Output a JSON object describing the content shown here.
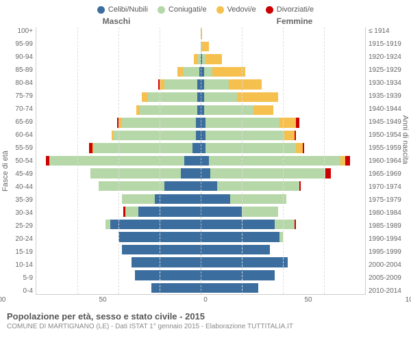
{
  "legend": [
    {
      "label": "Celibi/Nubili",
      "color": "#3b6e9e"
    },
    {
      "label": "Coniugati/e",
      "color": "#b6d7a8"
    },
    {
      "label": "Vedovi/e",
      "color": "#f6c04e"
    },
    {
      "label": "Divorziati/e",
      "color": "#cc0000"
    }
  ],
  "top_left_label": "Maschi",
  "top_right_label": "Femmine",
  "y_left_title": "Fasce di età",
  "y_right_title": "Anni di nascita",
  "x_ticks": [
    "100",
    "50",
    "0",
    "50",
    "100"
  ],
  "x_max": 100,
  "footer_title": "Popolazione per età, sesso e stato civile - 2015",
  "footer_sub": "COMUNE DI MARTIGNANO (LE) - Dati ISTAT 1° gennaio 2015 - Elaborazione TUTTITALIA.IT",
  "rows": [
    {
      "age": "100+",
      "birth": "≤ 1914",
      "m": {
        "c": 0,
        "s": 0,
        "v": 0,
        "d": 0
      },
      "f": {
        "c": 0,
        "s": 0,
        "v": 1,
        "d": 0
      }
    },
    {
      "age": "95-99",
      "birth": "1915-1919",
      "m": {
        "c": 0,
        "s": 0,
        "v": 0,
        "d": 0
      },
      "f": {
        "c": 0,
        "s": 1,
        "v": 4,
        "d": 0
      }
    },
    {
      "age": "90-94",
      "birth": "1920-1924",
      "m": {
        "c": 0,
        "s": 2,
        "v": 2,
        "d": 0
      },
      "f": {
        "c": 1,
        "s": 2,
        "v": 10,
        "d": 0
      }
    },
    {
      "age": "85-89",
      "birth": "1925-1929",
      "m": {
        "c": 1,
        "s": 10,
        "v": 3,
        "d": 0
      },
      "f": {
        "c": 2,
        "s": 5,
        "v": 20,
        "d": 0
      }
    },
    {
      "age": "80-84",
      "birth": "1930-1934",
      "m": {
        "c": 2,
        "s": 20,
        "v": 3,
        "d": 1
      },
      "f": {
        "c": 2,
        "s": 15,
        "v": 20,
        "d": 0
      }
    },
    {
      "age": "75-79",
      "birth": "1935-1939",
      "m": {
        "c": 2,
        "s": 30,
        "v": 4,
        "d": 0
      },
      "f": {
        "c": 2,
        "s": 20,
        "v": 25,
        "d": 0
      }
    },
    {
      "age": "70-74",
      "birth": "1940-1944",
      "m": {
        "c": 2,
        "s": 35,
        "v": 2,
        "d": 0
      },
      "f": {
        "c": 2,
        "s": 30,
        "v": 12,
        "d": 0
      }
    },
    {
      "age": "65-69",
      "birth": "1945-1949",
      "m": {
        "c": 3,
        "s": 45,
        "v": 2,
        "d": 1
      },
      "f": {
        "c": 3,
        "s": 45,
        "v": 10,
        "d": 2
      }
    },
    {
      "age": "60-64",
      "birth": "1950-1954",
      "m": {
        "c": 3,
        "s": 50,
        "v": 1,
        "d": 0
      },
      "f": {
        "c": 3,
        "s": 48,
        "v": 6,
        "d": 1
      }
    },
    {
      "age": "55-59",
      "birth": "1955-1959",
      "m": {
        "c": 5,
        "s": 60,
        "v": 1,
        "d": 2
      },
      "f": {
        "c": 3,
        "s": 55,
        "v": 4,
        "d": 1
      }
    },
    {
      "age": "50-54",
      "birth": "1960-1964",
      "m": {
        "c": 10,
        "s": 82,
        "v": 0,
        "d": 2
      },
      "f": {
        "c": 5,
        "s": 80,
        "v": 3,
        "d": 3
      }
    },
    {
      "age": "45-49",
      "birth": "1965-1969",
      "m": {
        "c": 12,
        "s": 55,
        "v": 0,
        "d": 0
      },
      "f": {
        "c": 6,
        "s": 70,
        "v": 0,
        "d": 3
      }
    },
    {
      "age": "40-44",
      "birth": "1970-1974",
      "m": {
        "c": 22,
        "s": 40,
        "v": 0,
        "d": 0
      },
      "f": {
        "c": 10,
        "s": 50,
        "v": 0,
        "d": 1
      }
    },
    {
      "age": "35-39",
      "birth": "1975-1979",
      "m": {
        "c": 28,
        "s": 20,
        "v": 0,
        "d": 0
      },
      "f": {
        "c": 18,
        "s": 34,
        "v": 0,
        "d": 0
      }
    },
    {
      "age": "30-34",
      "birth": "1980-1984",
      "m": {
        "c": 38,
        "s": 8,
        "v": 0,
        "d": 1
      },
      "f": {
        "c": 25,
        "s": 22,
        "v": 0,
        "d": 0
      }
    },
    {
      "age": "25-29",
      "birth": "1985-1989",
      "m": {
        "c": 55,
        "s": 3,
        "v": 0,
        "d": 0
      },
      "f": {
        "c": 45,
        "s": 12,
        "v": 0,
        "d": 1
      }
    },
    {
      "age": "20-24",
      "birth": "1990-1994",
      "m": {
        "c": 50,
        "s": 0,
        "v": 0,
        "d": 0
      },
      "f": {
        "c": 48,
        "s": 2,
        "v": 0,
        "d": 0
      }
    },
    {
      "age": "15-19",
      "birth": "1995-1999",
      "m": {
        "c": 48,
        "s": 0,
        "v": 0,
        "d": 0
      },
      "f": {
        "c": 42,
        "s": 0,
        "v": 0,
        "d": 0
      }
    },
    {
      "age": "10-14",
      "birth": "2000-2004",
      "m": {
        "c": 42,
        "s": 0,
        "v": 0,
        "d": 0
      },
      "f": {
        "c": 53,
        "s": 0,
        "v": 0,
        "d": 0
      }
    },
    {
      "age": "5-9",
      "birth": "2005-2009",
      "m": {
        "c": 40,
        "s": 0,
        "v": 0,
        "d": 0
      },
      "f": {
        "c": 45,
        "s": 0,
        "v": 0,
        "d": 0
      }
    },
    {
      "age": "0-4",
      "birth": "2010-2014",
      "m": {
        "c": 30,
        "s": 0,
        "v": 0,
        "d": 0
      },
      "f": {
        "c": 35,
        "s": 0,
        "v": 0,
        "d": 0
      }
    }
  ]
}
